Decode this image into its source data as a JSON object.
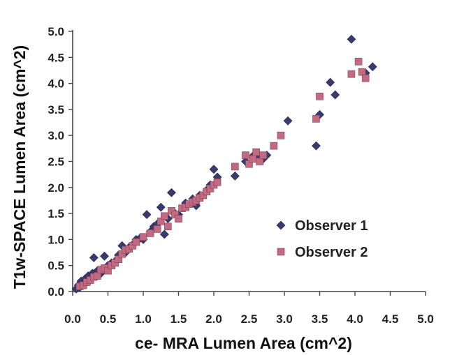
{
  "chart_data": {
    "type": "scatter",
    "title": "",
    "xlabel": "ce- MRA Lumen Area (cm^2)",
    "ylabel": "T1w-SPACE Lumen Area (cm^2)",
    "xlim": [
      0,
      5
    ],
    "ylim": [
      0,
      5
    ],
    "xticks": [
      "0.0",
      "0.5",
      "1.0",
      "1.5",
      "2.0",
      "2.5",
      "3.0",
      "3.5",
      "4.0",
      "4.5",
      "5.0"
    ],
    "yticks": [
      "0.0",
      "0.5",
      "1.0",
      "1.5",
      "2.0",
      "2.5",
      "3.0",
      "3.5",
      "4.0",
      "4.5",
      "5.0"
    ],
    "grid": false,
    "legend_position": "center-right",
    "series": [
      {
        "name": "Observer 1",
        "marker": "diamond",
        "color": "#3a3a6e",
        "points": [
          [
            0.05,
            0.05
          ],
          [
            0.08,
            0.12
          ],
          [
            0.1,
            0.08
          ],
          [
            0.12,
            0.2
          ],
          [
            0.15,
            0.15
          ],
          [
            0.18,
            0.25
          ],
          [
            0.2,
            0.18
          ],
          [
            0.22,
            0.3
          ],
          [
            0.25,
            0.22
          ],
          [
            0.28,
            0.35
          ],
          [
            0.3,
            0.65
          ],
          [
            0.32,
            0.3
          ],
          [
            0.35,
            0.4
          ],
          [
            0.4,
            0.35
          ],
          [
            0.45,
            0.68
          ],
          [
            0.5,
            0.5
          ],
          [
            0.55,
            0.55
          ],
          [
            0.6,
            0.58
          ],
          [
            0.65,
            0.7
          ],
          [
            0.7,
            0.88
          ],
          [
            0.75,
            0.75
          ],
          [
            0.8,
            0.85
          ],
          [
            0.85,
            0.9
          ],
          [
            0.9,
            1.0
          ],
          [
            0.95,
            1.02
          ],
          [
            1.0,
            1.0
          ],
          [
            1.05,
            1.48
          ],
          [
            1.1,
            1.15
          ],
          [
            1.15,
            1.25
          ],
          [
            1.2,
            1.3
          ],
          [
            1.25,
            1.62
          ],
          [
            1.3,
            1.1
          ],
          [
            1.35,
            1.4
          ],
          [
            1.4,
            1.9
          ],
          [
            1.45,
            1.5
          ],
          [
            1.5,
            1.48
          ],
          [
            1.6,
            1.7
          ],
          [
            1.7,
            1.78
          ],
          [
            1.75,
            1.65
          ],
          [
            1.8,
            1.85
          ],
          [
            1.9,
            1.95
          ],
          [
            1.95,
            2.05
          ],
          [
            2.0,
            2.35
          ],
          [
            2.05,
            2.2
          ],
          [
            2.3,
            2.22
          ],
          [
            2.45,
            2.5
          ],
          [
            2.55,
            2.6
          ],
          [
            2.62,
            2.62
          ],
          [
            2.7,
            2.55
          ],
          [
            2.75,
            2.62
          ],
          [
            3.05,
            3.28
          ],
          [
            3.45,
            2.8
          ],
          [
            3.5,
            3.4
          ],
          [
            3.65,
            4.02
          ],
          [
            3.72,
            3.78
          ],
          [
            3.95,
            4.85
          ],
          [
            4.15,
            4.2
          ],
          [
            4.25,
            4.32
          ]
        ]
      },
      {
        "name": "Observer 2",
        "marker": "square",
        "color": "#c06b82",
        "points": [
          [
            0.1,
            0.1
          ],
          [
            0.15,
            0.12
          ],
          [
            0.2,
            0.18
          ],
          [
            0.25,
            0.22
          ],
          [
            0.3,
            0.28
          ],
          [
            0.35,
            0.3
          ],
          [
            0.4,
            0.42
          ],
          [
            0.45,
            0.45
          ],
          [
            0.5,
            0.4
          ],
          [
            0.55,
            0.5
          ],
          [
            0.6,
            0.55
          ],
          [
            0.65,
            0.62
          ],
          [
            0.7,
            0.72
          ],
          [
            0.75,
            0.8
          ],
          [
            0.8,
            0.82
          ],
          [
            0.85,
            0.88
          ],
          [
            0.9,
            0.95
          ],
          [
            1.0,
            1.05
          ],
          [
            1.1,
            1.12
          ],
          [
            1.2,
            1.2
          ],
          [
            1.25,
            1.35
          ],
          [
            1.3,
            1.45
          ],
          [
            1.35,
            1.25
          ],
          [
            1.4,
            1.55
          ],
          [
            1.45,
            1.48
          ],
          [
            1.5,
            1.4
          ],
          [
            1.55,
            1.6
          ],
          [
            1.6,
            1.62
          ],
          [
            1.65,
            1.68
          ],
          [
            1.7,
            1.72
          ],
          [
            1.75,
            1.75
          ],
          [
            1.8,
            1.8
          ],
          [
            1.85,
            1.85
          ],
          [
            1.9,
            1.92
          ],
          [
            1.95,
            1.98
          ],
          [
            2.0,
            2.05
          ],
          [
            2.05,
            2.1
          ],
          [
            2.3,
            2.4
          ],
          [
            2.45,
            2.62
          ],
          [
            2.5,
            2.45
          ],
          [
            2.55,
            2.55
          ],
          [
            2.6,
            2.68
          ],
          [
            2.65,
            2.5
          ],
          [
            2.7,
            2.62
          ],
          [
            2.85,
            2.8
          ],
          [
            2.95,
            3.0
          ],
          [
            3.45,
            3.32
          ],
          [
            3.5,
            3.75
          ],
          [
            3.95,
            4.18
          ],
          [
            4.05,
            4.42
          ],
          [
            4.1,
            4.22
          ],
          [
            4.15,
            4.1
          ]
        ]
      }
    ]
  }
}
